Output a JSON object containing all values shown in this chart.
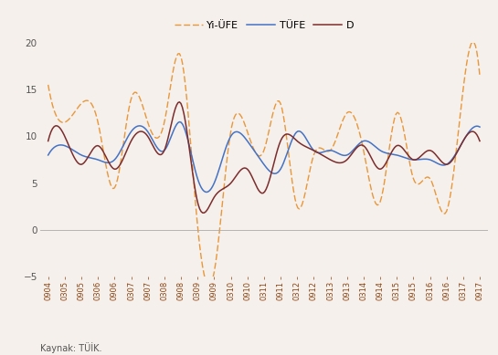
{
  "x_labels": [
    "0904",
    "0305",
    "0905",
    "0306",
    "0906",
    "0307",
    "0907",
    "0308",
    "0908",
    "0309",
    "0909",
    "0310",
    "0910",
    "0311",
    "0911",
    "0312",
    "0912",
    "0313",
    "0913",
    "0314",
    "0914",
    "0315",
    "0915",
    "0316",
    "0916",
    "0317",
    "0917"
  ],
  "yi_ufe": [
    15.5,
    11.5,
    13.5,
    11.5,
    4.5,
    14.0,
    11.5,
    11.5,
    18.5,
    0.5,
    -4.5,
    10.5,
    10.5,
    8.5,
    13.5,
    2.5,
    8.0,
    8.5,
    12.5,
    8.5,
    3.0,
    12.5,
    5.5,
    5.5,
    2.0,
    15.0,
    16.5
  ],
  "tufe": [
    8.0,
    9.0,
    8.0,
    7.5,
    7.5,
    10.5,
    10.5,
    8.5,
    11.5,
    5.5,
    5.0,
    10.0,
    9.5,
    7.0,
    6.5,
    10.5,
    8.5,
    8.5,
    8.0,
    9.5,
    8.5,
    8.0,
    7.5,
    7.5,
    7.0,
    9.5,
    11.0
  ],
  "d": [
    9.5,
    10.0,
    7.0,
    9.0,
    6.5,
    9.5,
    10.0,
    8.5,
    13.5,
    3.0,
    3.5,
    5.0,
    6.5,
    4.0,
    9.5,
    9.5,
    8.5,
    7.5,
    7.5,
    9.0,
    6.5,
    9.0,
    7.5,
    8.5,
    7.0,
    9.5,
    9.5
  ],
  "yi_ufe_color": "#E8973A",
  "tufe_color": "#4472C4",
  "d_color": "#7B2D2D",
  "background_color": "#F5F0EB",
  "ylim": [
    -5,
    20
  ],
  "yticks": [
    -5,
    0,
    5,
    10,
    15,
    20
  ],
  "legend_labels": [
    "Yi-ÜFE",
    "TÜFE",
    "D"
  ],
  "source_text": "Kaynak: TÜİK.",
  "tick_color": "#8B4513",
  "spine_color": "#CCCCCC"
}
